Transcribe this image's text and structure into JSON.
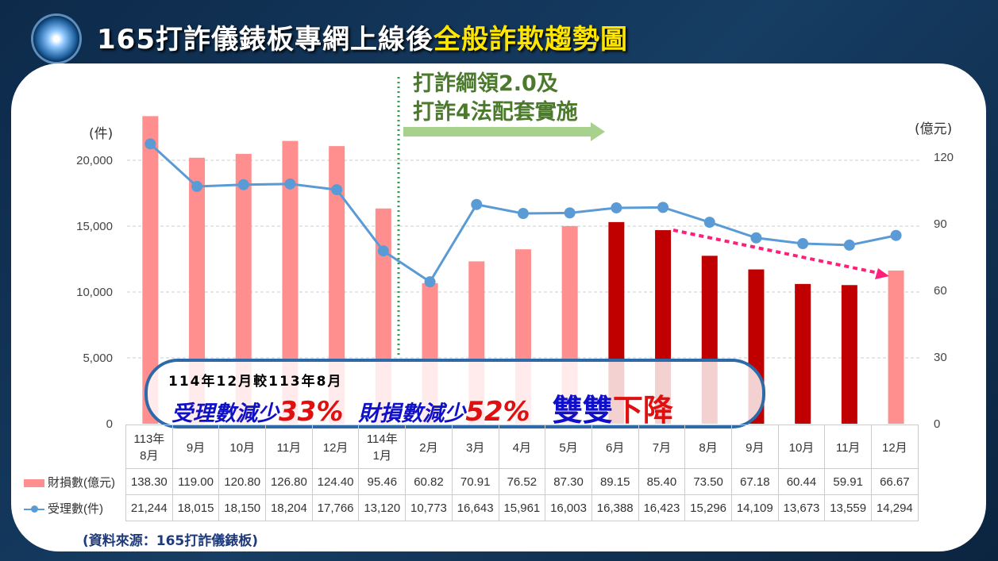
{
  "title": {
    "main": "165打詐儀錶板專網上線後",
    "highlight": "全般詐欺趨勢圖"
  },
  "annotation": {
    "policy_line1": "打詐綱領2.0及",
    "policy_line2": "打詐4法配套實施"
  },
  "callout": {
    "line1": "114年12月較113年8月",
    "cases_label": "受理數減少",
    "cases_pct": "33%",
    "loss_label": "財損數減少",
    "loss_pct": "52%",
    "both": "雙雙",
    "down": "下降"
  },
  "source": "(資料來源：165打詐儀錶板)",
  "colors": {
    "bar_light": "#ff8f8f",
    "bar_dark": "#c00000",
    "line": "#5b9bd5",
    "policy_line": "#2ca04c",
    "trend_arrow": "#ff1f7a"
  },
  "chart_data": {
    "type": "bar+line",
    "categories": [
      "113年 8月",
      "9月",
      "10月",
      "11月",
      "12月",
      "114年 1月",
      "2月",
      "3月",
      "4月",
      "5月",
      "6月",
      "7月",
      "8月",
      "9月",
      "10月",
      "11月",
      "12月"
    ],
    "series": [
      {
        "name": "財損數(億元)",
        "type": "bar",
        "axis": "right",
        "values": [
          138.3,
          119.0,
          120.8,
          126.8,
          124.4,
          95.46,
          60.82,
          70.91,
          76.52,
          87.3,
          89.15,
          85.4,
          73.5,
          67.18,
          60.44,
          59.91,
          66.67
        ],
        "value_labels": [
          "138.30",
          "119.00",
          "120.80",
          "126.80",
          "124.40",
          "95.46",
          "60.82",
          "70.91",
          "76.52",
          "87.30",
          "89.15",
          "85.40",
          "73.50",
          "67.18",
          "60.44",
          "59.91",
          "66.67"
        ],
        "highlighted": [
          false,
          false,
          false,
          false,
          false,
          false,
          false,
          false,
          false,
          false,
          true,
          true,
          true,
          true,
          true,
          true,
          false
        ]
      },
      {
        "name": "受理數(件)",
        "type": "line",
        "axis": "left",
        "values": [
          21244,
          18015,
          18150,
          18204,
          17766,
          13120,
          10773,
          16643,
          15961,
          16003,
          16388,
          16423,
          15296,
          14109,
          13673,
          13559,
          14294
        ],
        "value_labels": [
          "21,244",
          "18,015",
          "18,150",
          "18,204",
          "17,766",
          "13,120",
          "10,773",
          "16,643",
          "15,961",
          "16,003",
          "16,388",
          "16,423",
          "15,296",
          "14,109",
          "13,673",
          "13,559",
          "14,294"
        ]
      }
    ],
    "left_axis": {
      "unit": "(件)",
      "ticks": [
        "0",
        "5,000",
        "10,000",
        "15,000",
        "20,000"
      ],
      "range": [
        0,
        20000
      ]
    },
    "right_axis": {
      "unit": "(億元)",
      "ticks": [
        "0",
        "30",
        "60",
        "90",
        "120"
      ],
      "range": [
        0,
        120
      ]
    },
    "grid": "horizontal dashed"
  }
}
